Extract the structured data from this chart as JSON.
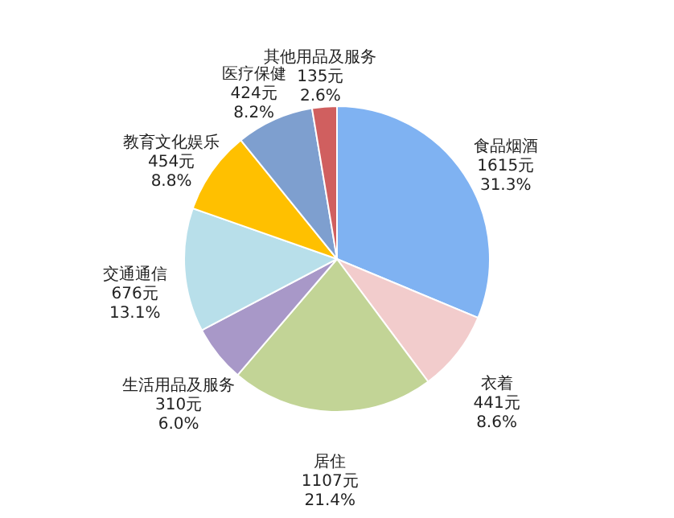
{
  "chart_data": {
    "type": "pie",
    "categories": [
      "食品烟酒",
      "衣着",
      "居住",
      "生活用品及服务",
      "交通通信",
      "教育文化娱乐",
      "医疗保健",
      "其他用品及服务"
    ],
    "values": [
      1615,
      441,
      1107,
      310,
      676,
      454,
      424,
      135
    ],
    "value_labels": [
      "1615元 31.3%",
      "441元 8.6%",
      "1107元 21.4%",
      "310元 6.0%",
      "676元 13.1%",
      "454元 8.8%",
      "424元 8.2%",
      "135元 2.6%"
    ],
    "colors": [
      "#7fb2f2",
      "#f2cccc",
      "#c2d496",
      "#a898c8",
      "#b8dfea",
      "#ffc000",
      "#7e9fcf",
      "#d05f5f"
    ]
  }
}
